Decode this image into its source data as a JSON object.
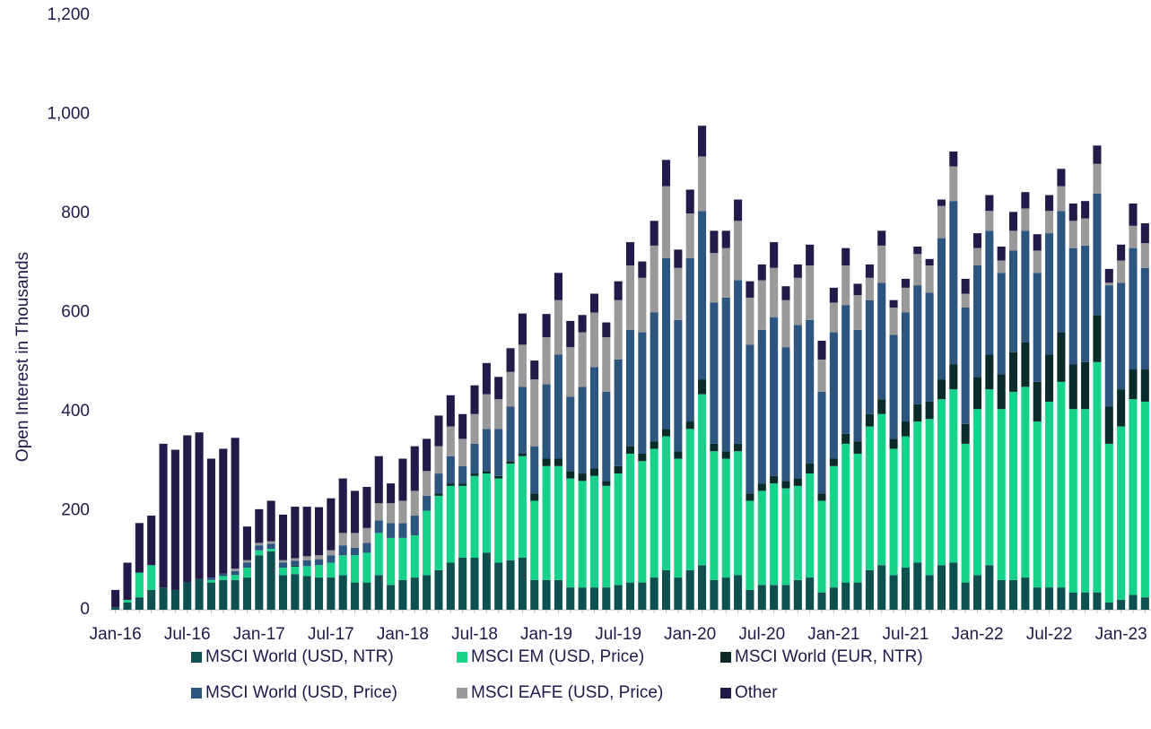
{
  "chart_data": {
    "type": "stacked_bar",
    "y_label": "Open Interest in Thousands",
    "categories": [
      "Jan-16",
      null,
      null,
      null,
      null,
      null,
      "Jul-16",
      null,
      null,
      null,
      null,
      null,
      "Jan-17",
      null,
      null,
      null,
      null,
      null,
      "Jul-17",
      null,
      null,
      null,
      null,
      null,
      "Jan-18",
      null,
      null,
      null,
      null,
      null,
      "Jul-18",
      null,
      null,
      null,
      null,
      null,
      "Jan-19",
      null,
      null,
      null,
      null,
      null,
      "Jul-19",
      null,
      null,
      null,
      null,
      null,
      "Jan-20",
      null,
      null,
      null,
      null,
      null,
      "Jul-20",
      null,
      null,
      null,
      null,
      null,
      "Jan-21",
      null,
      null,
      null,
      null,
      null,
      "Jul-21",
      null,
      null,
      null,
      null,
      null,
      "Jan-22",
      null,
      null,
      null,
      null,
      null,
      "Jul-22",
      null,
      null,
      null,
      null,
      null,
      "Jan-23",
      null,
      null
    ],
    "series": [
      {
        "name": "MSCI World (USD, NTR)",
        "color": "#0e4f4f",
        "values": [
          5,
          15,
          25,
          40,
          45,
          40,
          55,
          62,
          55,
          60,
          60,
          65,
          110,
          118,
          70,
          72,
          68,
          65,
          65,
          70,
          55,
          55,
          70,
          50,
          60,
          65,
          70,
          80,
          95,
          105,
          105,
          115,
          95,
          100,
          105,
          60,
          60,
          60,
          45,
          45,
          45,
          45,
          50,
          55,
          55,
          65,
          80,
          65,
          80,
          90,
          60,
          65,
          70,
          40,
          50,
          50,
          50,
          60,
          65,
          35,
          45,
          55,
          55,
          80,
          90,
          70,
          85,
          95,
          70,
          90,
          95,
          55,
          70,
          90,
          60,
          60,
          65,
          45,
          45,
          45,
          35,
          35,
          35,
          15,
          20,
          30,
          25
        ]
      },
      {
        "name": "MSCI EM (USD, Price)",
        "color": "#17d28a",
        "values": [
          0,
          5,
          50,
          50,
          0,
          0,
          0,
          0,
          5,
          8,
          10,
          20,
          10,
          5,
          15,
          15,
          20,
          25,
          30,
          40,
          55,
          60,
          85,
          95,
          85,
          85,
          130,
          150,
          155,
          145,
          165,
          160,
          170,
          195,
          205,
          160,
          230,
          230,
          220,
          215,
          225,
          205,
          225,
          260,
          245,
          260,
          270,
          240,
          285,
          345,
          260,
          240,
          250,
          180,
          190,
          205,
          195,
          190,
          210,
          185,
          245,
          280,
          260,
          290,
          305,
          255,
          265,
          285,
          315,
          335,
          350,
          280,
          335,
          355,
          345,
          380,
          385,
          335,
          375,
          415,
          370,
          370,
          465,
          320,
          350,
          395,
          395
        ]
      },
      {
        "name": "MSCI World (EUR, NTR)",
        "color": "#0b2b2b",
        "values": [
          0,
          0,
          0,
          0,
          0,
          0,
          0,
          0,
          0,
          0,
          0,
          0,
          0,
          0,
          0,
          2,
          0,
          0,
          0,
          0,
          0,
          0,
          0,
          0,
          0,
          0,
          0,
          5,
          5,
          5,
          5,
          5,
          5,
          5,
          5,
          15,
          15,
          15,
          15,
          15,
          15,
          10,
          15,
          15,
          15,
          15,
          15,
          15,
          15,
          30,
          15,
          15,
          15,
          15,
          15,
          15,
          15,
          15,
          20,
          15,
          15,
          20,
          25,
          25,
          30,
          20,
          30,
          35,
          35,
          40,
          50,
          40,
          65,
          70,
          70,
          80,
          90,
          80,
          95,
          100,
          90,
          95,
          95,
          75,
          75,
          60,
          65
        ]
      },
      {
        "name": "MSCI World (USD, Price)",
        "color": "#2c5580",
        "values": [
          0,
          0,
          0,
          0,
          0,
          0,
          0,
          0,
          5,
          5,
          8,
          10,
          10,
          10,
          10,
          10,
          12,
          12,
          15,
          20,
          15,
          20,
          25,
          30,
          30,
          40,
          30,
          40,
          55,
          35,
          60,
          85,
          95,
          110,
          135,
          95,
          150,
          210,
          150,
          175,
          205,
          180,
          215,
          235,
          245,
          260,
          345,
          265,
          330,
          340,
          285,
          310,
          330,
          300,
          310,
          320,
          270,
          310,
          290,
          205,
          255,
          260,
          225,
          230,
          235,
          210,
          220,
          240,
          220,
          285,
          330,
          235,
          225,
          250,
          205,
          205,
          225,
          220,
          245,
          245,
          235,
          235,
          245,
          245,
          215,
          245,
          205
        ]
      },
      {
        "name": "MSCI EAFE (USD, Price)",
        "color": "#999999",
        "values": [
          0,
          0,
          0,
          0,
          0,
          0,
          0,
          0,
          0,
          0,
          5,
          5,
          5,
          5,
          5,
          5,
          8,
          8,
          10,
          25,
          30,
          30,
          35,
          40,
          45,
          50,
          50,
          55,
          60,
          55,
          60,
          70,
          60,
          70,
          85,
          135,
          95,
          110,
          100,
          110,
          110,
          110,
          120,
          130,
          110,
          135,
          145,
          105,
          90,
          110,
          100,
          100,
          120,
          95,
          100,
          100,
          95,
          95,
          110,
          65,
          60,
          80,
          70,
          45,
          75,
          55,
          50,
          63,
          55,
          65,
          70,
          28,
          35,
          40,
          25,
          40,
          45,
          45,
          45,
          50,
          55,
          55,
          60,
          5,
          45,
          45,
          50
        ]
      },
      {
        "name": "Other",
        "color": "#231a4a",
        "values": [
          35,
          75,
          100,
          100,
          290,
          283,
          297,
          296,
          240,
          252,
          264,
          68,
          68,
          82,
          92,
          104,
          100,
          97,
          105,
          110,
          85,
          83,
          95,
          40,
          85,
          90,
          65,
          62,
          63,
          50,
          58,
          63,
          45,
          48,
          63,
          38,
          47,
          55,
          53,
          35,
          38,
          30,
          38,
          47,
          33,
          50,
          53,
          37,
          48,
          62,
          45,
          35,
          43,
          33,
          32,
          52,
          28,
          27,
          42,
          38,
          30,
          35,
          23,
          27,
          30,
          15,
          18,
          15,
          13,
          13,
          30,
          30,
          30,
          32,
          28,
          38,
          33,
          33,
          32,
          35,
          35,
          35,
          37,
          28,
          32,
          45,
          40
        ]
      }
    ],
    "ylim": [
      0,
      1200
    ],
    "yticks": [
      0,
      200,
      400,
      600,
      800,
      {
        "value": 1000,
        "label": "1,000"
      },
      {
        "value": 1200,
        "label": "1,200"
      }
    ],
    "grid": false
  }
}
